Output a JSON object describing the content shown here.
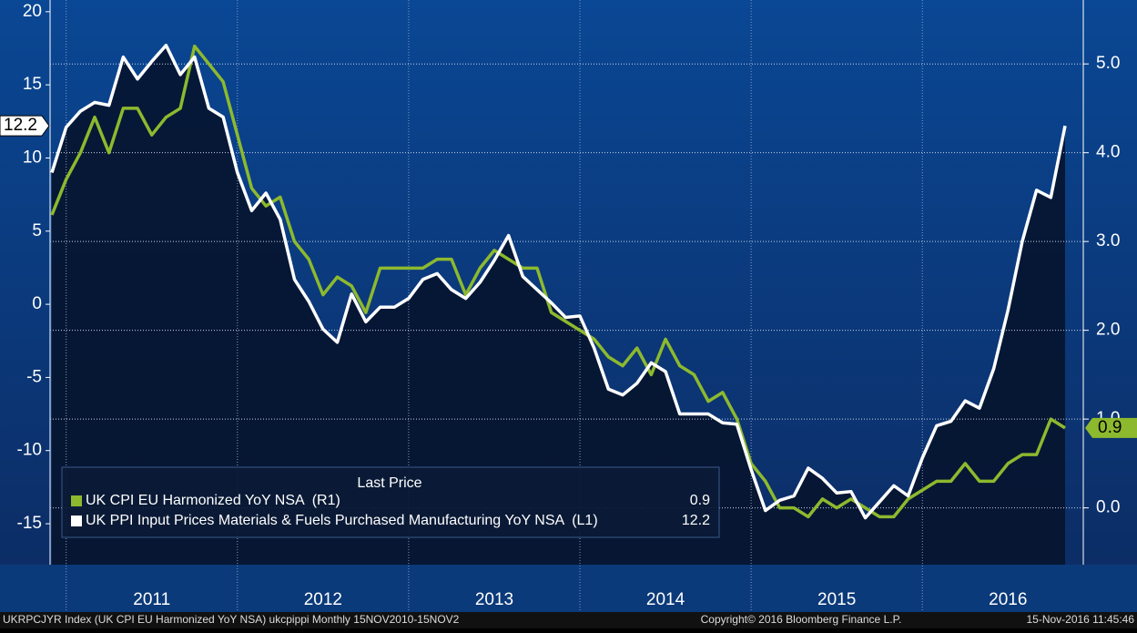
{
  "chart_data": {
    "type": "line",
    "categories": [
      null,
      null,
      null,
      null,
      null,
      null,
      null,
      "2011",
      null,
      null,
      null,
      null,
      null,
      null,
      null,
      null,
      null,
      null,
      null,
      "2012",
      null,
      null,
      null,
      null,
      null,
      null,
      null,
      null,
      null,
      null,
      null,
      "2013",
      null,
      null,
      null,
      null,
      null,
      null,
      null,
      null,
      null,
      null,
      null,
      "2014",
      null,
      null,
      null,
      null,
      null,
      null,
      null,
      null,
      null,
      null,
      null,
      "2015",
      null,
      null,
      null,
      null,
      null,
      null,
      null,
      null,
      null,
      null,
      null,
      "2016",
      null,
      null,
      null,
      null
    ],
    "series": [
      {
        "name": "UK CPI EU Harmonized YoY NSA  (R1)",
        "color": "#8db92e",
        "axis": "y2",
        "values": [
          3.3,
          3.7,
          4.0,
          4.4,
          4.0,
          4.5,
          4.5,
          4.2,
          4.4,
          4.5,
          5.2,
          5.0,
          4.8,
          4.2,
          3.6,
          3.4,
          3.5,
          3.0,
          2.8,
          2.4,
          2.6,
          2.5,
          2.2,
          2.7,
          2.7,
          2.7,
          2.7,
          2.8,
          2.8,
          2.4,
          2.7,
          2.9,
          2.8,
          2.7,
          2.7,
          2.2,
          2.1,
          2.0,
          1.9,
          1.7,
          1.6,
          1.8,
          1.5,
          1.9,
          1.6,
          1.5,
          1.2,
          1.3,
          1.0,
          0.5,
          0.3,
          0.0,
          0.0,
          -0.1,
          0.1,
          0.0,
          0.1,
          0.0,
          -0.1,
          -0.1,
          0.1,
          0.2,
          0.3,
          0.3,
          0.5,
          0.3,
          0.3,
          0.5,
          0.6,
          0.6,
          1.0,
          0.9
        ]
      },
      {
        "name": "UK PPI Input Prices Materials & Fuels Purchased Manufacturing YoY NSA  (L1)",
        "color": "#ffffff",
        "axis": "y",
        "values": [
          9.0,
          12.1,
          13.2,
          13.8,
          13.6,
          16.9,
          15.4,
          16.6,
          17.7,
          15.7,
          16.9,
          13.4,
          12.8,
          9.0,
          6.4,
          7.6,
          5.8,
          1.7,
          0.2,
          -1.7,
          -2.6,
          0.7,
          -1.2,
          -0.2,
          -0.2,
          0.4,
          1.7,
          2.1,
          1.0,
          0.4,
          1.5,
          3.0,
          4.7,
          1.9,
          1.0,
          0.1,
          -0.9,
          -0.8,
          -3.0,
          -5.8,
          -6.2,
          -5.4,
          -4.0,
          -4.6,
          -7.5,
          -7.5,
          -7.5,
          -8.1,
          -8.2,
          -11.3,
          -14.1,
          -13.4,
          -13.1,
          -11.2,
          -11.9,
          -12.9,
          -12.8,
          -14.6,
          -13.5,
          -12.4,
          -13.1,
          -10.5,
          -8.3,
          -8.0,
          -6.6,
          -7.1,
          -4.4,
          -0.4,
          4.3,
          7.8,
          7.3,
          12.2
        ]
      }
    ],
    "legend_title": "Last Price",
    "ylim": [
      -17.8,
      20.8
    ],
    "yticks": [
      20,
      15,
      10,
      5,
      0,
      -5,
      -10,
      -15
    ],
    "y2lim": [
      -0.64,
      5.72
    ],
    "y2ticks": [
      {
        "value": 5,
        "label": "5.0"
      },
      {
        "value": 4,
        "label": "4.0"
      },
      {
        "value": 3,
        "label": "3.0"
      },
      {
        "value": 2,
        "label": "2.0"
      },
      {
        "value": 1,
        "label": "1.0"
      },
      {
        "value": 0,
        "label": "0.0"
      }
    ],
    "grid": true,
    "legend": "lower left"
  },
  "footer": {
    "left": "UKRPCJYR Index (UK CPI EU Harmonized YoY NSA) ukcpippi  Monthly 15NOV2010-15NOV2",
    "center": "Copyright© 2016 Bloomberg Finance L.P.",
    "right": "15-Nov-2016 11:45:46"
  }
}
